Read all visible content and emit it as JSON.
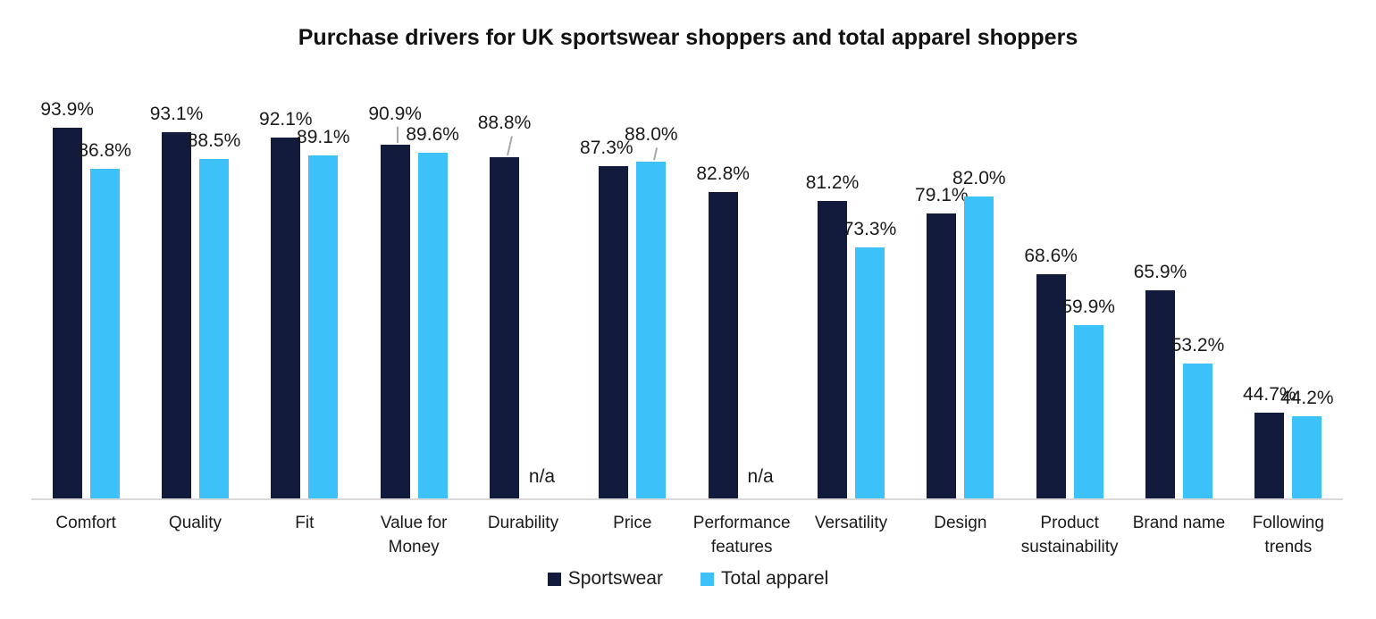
{
  "chart_data": {
    "type": "bar",
    "title": "Purchase drivers for UK sportswear shoppers and total apparel shoppers",
    "categories": [
      "Comfort",
      "Quality",
      "Fit",
      "Value for Money",
      "Durability",
      "Price",
      "Performance features",
      "Versatility",
      "Design",
      "Product sustainability",
      "Brand name",
      "Following trends"
    ],
    "series": [
      {
        "name": "Sportswear",
        "color": "#121b3c",
        "values": [
          93.9,
          93.1,
          92.1,
          90.9,
          88.8,
          87.3,
          82.8,
          81.2,
          79.1,
          68.6,
          65.9,
          44.7
        ]
      },
      {
        "name": "Total apparel",
        "color": "#3cc2f9",
        "values": [
          86.8,
          88.5,
          89.1,
          89.6,
          null,
          88.0,
          null,
          73.3,
          82.0,
          59.9,
          53.2,
          44.2
        ]
      }
    ],
    "missing_value_text": "n/a",
    "value_label_format": "one_decimal_percent",
    "axis": {
      "y_min": 30,
      "y_max": 100,
      "y_axis_visible": false,
      "gridlines": false,
      "baseline_visible": true,
      "baseline_color": "#d9d9d9"
    },
    "legend_position": "bottom",
    "colors": {
      "sportswear": "#121b3c",
      "total_apparel": "#3cc2f9",
      "leader_line": "#a6a6a6",
      "text": "#1a1a1a"
    },
    "label_adjustments": [
      {
        "series": 0,
        "category": "Value for Money",
        "extra_gap": 14,
        "leader": "vertical"
      },
      {
        "series": 0,
        "category": "Durability",
        "extra_gap": 18,
        "leader": "tilted"
      },
      {
        "series": 1,
        "category": "Price",
        "extra_gap": 10,
        "leader": "tilted"
      },
      {
        "series": 0,
        "category": "Price",
        "dx": -8
      }
    ]
  }
}
